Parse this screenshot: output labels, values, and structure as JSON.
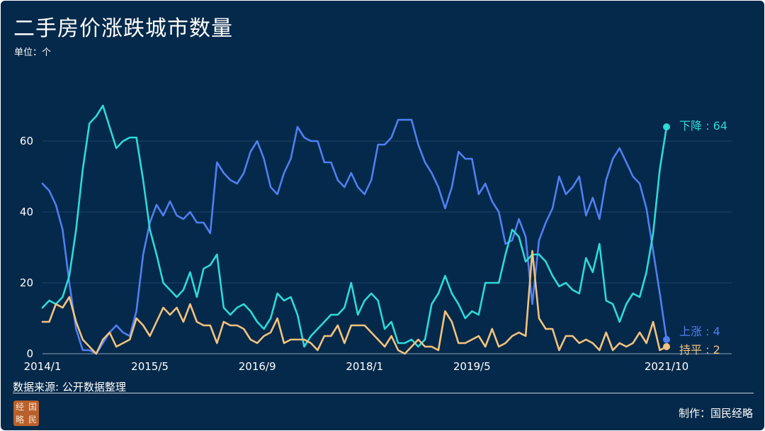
{
  "title": "二手房价涨跌城市数量",
  "unit": "单位：个",
  "source": "数据来源: 公开数据整理",
  "maker": "制作：国民经略",
  "seal_chars": [
    "经",
    "国",
    "略",
    "民"
  ],
  "chart_data": {
    "type": "line",
    "title": "二手房价涨跌城市数量",
    "ylabel": "单位：个",
    "ylim": [
      0,
      70
    ],
    "yticks": [
      0,
      20,
      40,
      60
    ],
    "x_start": "2014/1",
    "x_tick_labels": [
      "2014/1",
      "2015/5",
      "2016/9",
      "2018/1",
      "2019/5",
      "2021/10"
    ],
    "x_tick_index": [
      0,
      16,
      32,
      48,
      64,
      93
    ],
    "grid": true,
    "legend": "end-of-line labels",
    "series": [
      {
        "name": "上涨",
        "label": "上涨 : 4",
        "color": "#4f7ff2",
        "values": [
          48,
          46,
          42,
          35,
          20,
          7,
          1,
          1,
          0,
          3,
          6,
          8,
          6,
          5,
          12,
          28,
          37,
          42,
          39,
          43,
          39,
          38,
          40,
          37,
          37,
          34,
          54,
          51,
          49,
          48,
          51,
          57,
          60,
          55,
          47,
          45,
          51,
          55,
          64,
          61,
          60,
          60,
          54,
          54,
          49,
          47,
          51,
          47,
          45,
          49,
          59,
          59,
          61,
          66,
          66,
          66,
          59,
          54,
          51,
          47,
          41,
          47,
          57,
          55,
          55,
          45,
          48,
          43,
          40,
          31,
          32,
          38,
          33,
          14,
          32,
          37,
          41,
          50,
          45,
          47,
          50,
          39,
          44,
          38,
          49,
          55,
          58,
          54,
          50,
          48,
          41,
          29,
          17,
          4
        ]
      },
      {
        "name": "下降",
        "label": "下降 : 64",
        "color": "#2ddad8",
        "values": [
          13,
          15,
          14,
          16,
          22,
          35,
          52,
          65,
          67,
          70,
          64,
          58,
          60,
          61,
          61,
          49,
          35,
          28,
          20,
          18,
          16,
          18,
          23,
          16,
          24,
          25,
          28,
          13,
          11,
          13,
          14,
          12,
          9,
          7,
          10,
          17,
          15,
          16,
          11,
          2,
          5,
          7,
          9,
          11,
          11,
          13,
          20,
          11,
          15,
          17,
          15,
          7,
          9,
          3,
          3,
          4,
          2,
          4,
          14,
          17,
          22,
          17,
          14,
          10,
          12,
          11,
          20,
          20,
          20,
          28,
          35,
          33,
          26,
          28,
          28,
          26,
          22,
          19,
          20,
          18,
          17,
          27,
          23,
          31,
          15,
          14,
          9,
          14,
          17,
          16,
          23,
          34,
          52,
          64
        ]
      },
      {
        "name": "持平",
        "label": "持平 : 2",
        "color": "#f4c27e",
        "values": [
          9,
          9,
          14,
          13,
          16,
          9,
          4,
          2,
          0,
          4,
          6,
          2,
          3,
          4,
          10,
          8,
          5,
          9,
          13,
          11,
          13,
          9,
          14,
          9,
          8,
          8,
          3,
          9,
          8,
          8,
          7,
          4,
          3,
          5,
          6,
          10,
          3,
          4,
          4,
          4,
          3,
          1,
          5,
          5,
          8,
          3,
          8,
          8,
          8,
          6,
          4,
          2,
          5,
          1,
          0,
          2,
          4,
          2,
          2,
          1,
          12,
          9,
          3,
          3,
          4,
          5,
          2,
          7,
          2,
          3,
          5,
          6,
          5,
          29,
          10,
          7,
          7,
          1,
          5,
          5,
          3,
          4,
          3,
          1,
          6,
          1,
          3,
          2,
          3,
          6,
          3,
          9,
          1,
          2
        ]
      }
    ]
  }
}
